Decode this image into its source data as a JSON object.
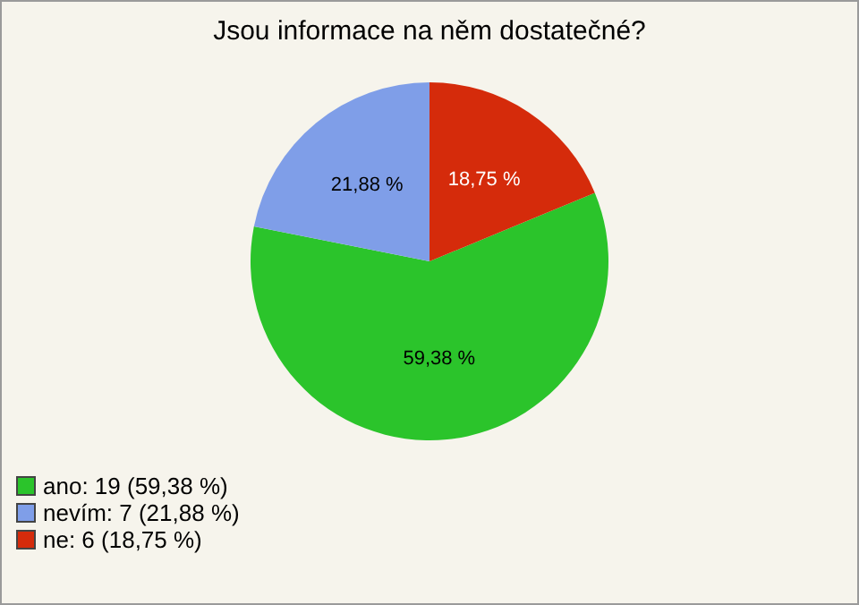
{
  "chart_data": {
    "type": "pie",
    "title": "Jsou informace na něm dostatečné?",
    "categories": [
      "ano: 19 (59,38 %)",
      "nevím: 7 (21,88 %)",
      "ne: 6 (18,75 %)"
    ],
    "values": [
      59.38,
      21.88,
      18.75
    ],
    "value_labels": [
      "59,38 %",
      "21,88 %",
      "18,75 %"
    ],
    "colors": [
      "#2bc42b",
      "#7f9ee8",
      "#d52b0b"
    ],
    "legend": "bottom left"
  }
}
